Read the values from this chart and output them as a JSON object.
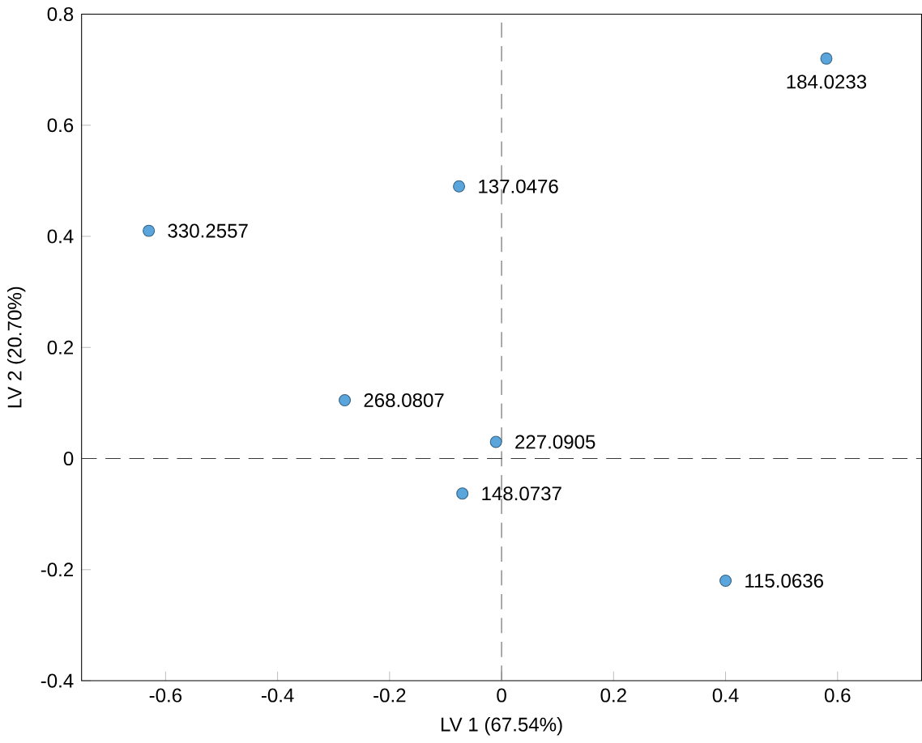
{
  "chart_data": {
    "type": "scatter",
    "xlabel": "LV 1 (67.54%)",
    "ylabel": "LV 2 (20.70%)",
    "x": [
      0.58,
      -0.076,
      -0.63,
      -0.28,
      -0.01,
      -0.07,
      0.4
    ],
    "values": [
      0.72,
      0.49,
      0.41,
      0.105,
      0.03,
      -0.063,
      -0.22
    ],
    "color": "#5aa5dc",
    "marker": "circle",
    "xlim": [
      -0.75,
      0.75
    ],
    "ylim": [
      -0.4,
      0.8
    ],
    "xticks": [
      -0.6,
      -0.4,
      -0.2,
      0,
      0.2,
      0.4,
      0.6
    ],
    "yticks": [
      -0.4,
      -0.2,
      0,
      0.2,
      0.4,
      0.6,
      0.8
    ],
    "ref_lines": [
      {
        "axis": "x",
        "value": 0,
        "line_style": "dashed"
      },
      {
        "axis": "y",
        "value": 0,
        "line_style": "dashed"
      }
    ],
    "annotations": [
      {
        "text": "184.0233",
        "x": 0.58,
        "y": 0.72
      },
      {
        "text": "137.0476",
        "x": -0.076,
        "y": 0.49
      },
      {
        "text": "330.2557",
        "x": -0.63,
        "y": 0.41
      },
      {
        "text": "268.0807",
        "x": -0.28,
        "y": 0.105
      },
      {
        "text": "227.0905",
        "x": -0.01,
        "y": 0.03
      },
      {
        "text": "148.0737",
        "x": -0.07,
        "y": -0.063
      },
      {
        "text": "115.0636",
        "x": 0.4,
        "y": -0.22
      }
    ]
  }
}
